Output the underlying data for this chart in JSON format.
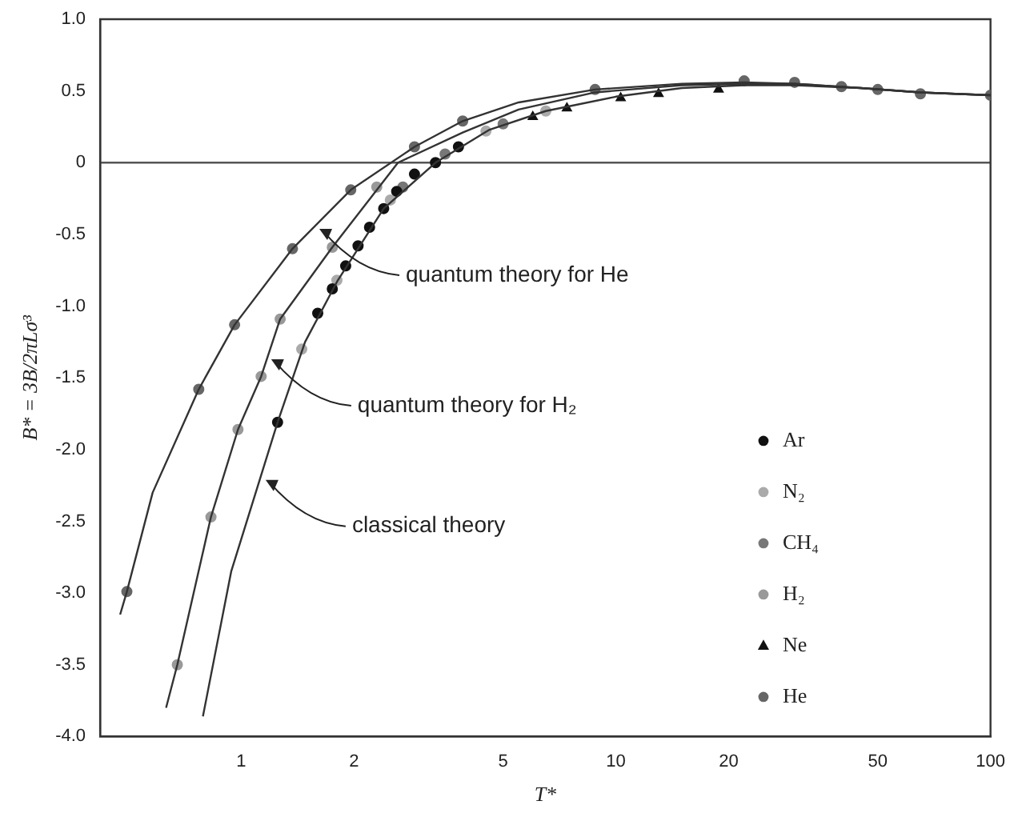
{
  "chart_data": {
    "type": "scatter",
    "xlabel": "T*",
    "ylabel": "B* = 3B/2πLσ³",
    "log": "x",
    "grid": false,
    "legend": "right",
    "xlim": [
      0.42,
      100
    ],
    "xticks": [
      1,
      2,
      5,
      10,
      20,
      50,
      100
    ],
    "ylim": [
      -4,
      1
    ],
    "yticks": [
      {
        "value": 1,
        "label": "1.0"
      },
      0.5,
      0,
      -0.5,
      {
        "value": -1,
        "label": "-1.0"
      },
      -1.5,
      {
        "value": -2,
        "label": "-2.0"
      },
      -2.5,
      {
        "value": -3,
        "label": "-3.0"
      },
      -3.5,
      {
        "value": -4,
        "label": "-4.0"
      }
    ],
    "ref_lines": [
      {
        "axis": "y",
        "value": 0,
        "color": "#555555"
      }
    ],
    "annotations": [
      {
        "text": "quantum theory for He",
        "x": 1.6,
        "y": -0.45
      },
      {
        "text": "quantum theory for H₂",
        "x": 1.19,
        "y": -1.36
      },
      {
        "text": "classical theory",
        "x": 1.15,
        "y": -2.2
      }
    ],
    "series": [
      {
        "type": "line",
        "color": "#333333",
        "marker": "none",
        "x": [
          0.475,
          0.495,
          0.58,
          0.77,
          0.96,
          1.37,
          1.96,
          2.9,
          3.9,
          5.5,
          8.8,
          15,
          22,
          30,
          45,
          65,
          100
        ],
        "values": [
          -3.15,
          -2.99,
          -2.3,
          -1.58,
          -1.13,
          -0.6,
          -0.19,
          0.11,
          0.29,
          0.42,
          0.51,
          0.55,
          0.56,
          0.55,
          0.52,
          0.49,
          0.47
        ]
      },
      {
        "type": "line",
        "color": "#333333",
        "marker": "none",
        "x": [
          0.63,
          0.675,
          0.83,
          0.98,
          1.13,
          1.27,
          1.75,
          2.62,
          3.9,
          5.5,
          8.8,
          15,
          22,
          30,
          45,
          65,
          100
        ],
        "values": [
          -3.8,
          -3.5,
          -2.47,
          -1.86,
          -1.49,
          -1.09,
          -0.59,
          0,
          0.21,
          0.37,
          0.49,
          0.54,
          0.55,
          0.55,
          0.52,
          0.49,
          0.47
        ]
      },
      {
        "type": "line",
        "color": "#333333",
        "marker": "none",
        "x": [
          0.79,
          0.94,
          1.25,
          1.48,
          1.81,
          2.4,
          3.3,
          4.6,
          6.5,
          10,
          15,
          22,
          30,
          45,
          65,
          100
        ],
        "values": [
          -3.86,
          -2.85,
          -1.81,
          -1.25,
          -0.82,
          -0.32,
          0,
          0.23,
          0.36,
          0.46,
          0.52,
          0.54,
          0.54,
          0.52,
          0.49,
          0.47
        ]
      },
      {
        "name": "Ar",
        "color": "#111111",
        "marker": "circle",
        "x": [
          1.25,
          1.6,
          1.75,
          1.9,
          2.05,
          2.2,
          2.4,
          2.6,
          2.9,
          3.3,
          3.8
        ],
        "values": [
          -1.81,
          -1.05,
          -0.88,
          -0.72,
          -0.58,
          -0.45,
          -0.32,
          -0.2,
          -0.08,
          0,
          0.11
        ]
      },
      {
        "name": "N₂",
        "color": "#aaaaaa",
        "marker": "circle",
        "x": [
          1.45,
          1.8,
          2.5,
          4.5,
          6.5
        ],
        "values": [
          -1.3,
          -0.82,
          -0.26,
          0.22,
          0.36
        ]
      },
      {
        "name": "CH₄",
        "color": "#777777",
        "marker": "circle",
        "x": [
          2.7,
          3.5,
          5
        ],
        "values": [
          -0.17,
          0.06,
          0.27
        ]
      },
      {
        "name": "H₂",
        "color": "#999999",
        "marker": "circle",
        "x": [
          0.675,
          0.83,
          0.98,
          1.13,
          1.27,
          1.75,
          2.3
        ],
        "values": [
          -3.5,
          -2.47,
          -1.86,
          -1.49,
          -1.09,
          -0.59,
          -0.17
        ]
      },
      {
        "name": "Ne",
        "color": "#111111",
        "marker": "triangle",
        "x": [
          6,
          7.4,
          10.3,
          13,
          18.8
        ],
        "values": [
          0.32,
          0.38,
          0.45,
          0.48,
          0.51
        ]
      },
      {
        "name": "He",
        "color": "#666666",
        "marker": "circle",
        "x": [
          0.495,
          0.77,
          0.96,
          1.37,
          1.96,
          2.9,
          3.9,
          8.8,
          22,
          30,
          40,
          50,
          65,
          100
        ],
        "values": [
          -2.99,
          -1.58,
          -1.13,
          -0.6,
          -0.19,
          0.11,
          0.29,
          0.51,
          0.57,
          0.56,
          0.53,
          0.51,
          0.48,
          0.47
        ]
      }
    ]
  }
}
